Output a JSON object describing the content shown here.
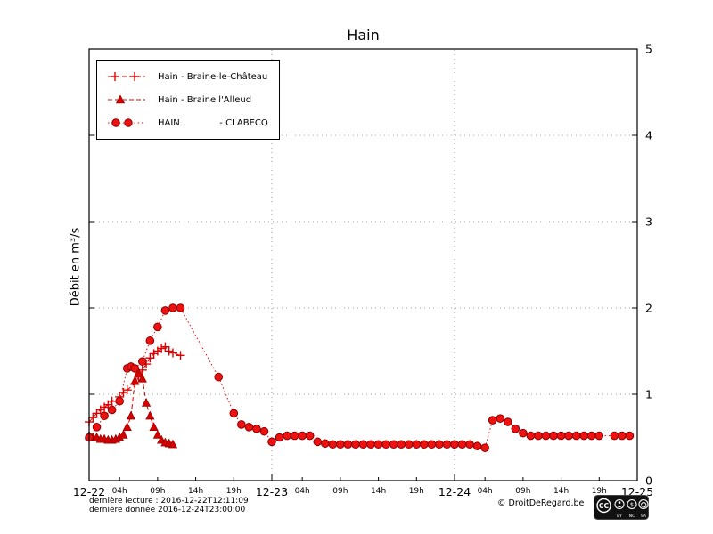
{
  "chart_data": {
    "type": "line",
    "title": "Hain",
    "ylabel": "Débit en m³/s",
    "xlim_hours": [
      0,
      72
    ],
    "ylim": [
      0,
      5
    ],
    "y_ticks": [
      0,
      1,
      2,
      3,
      4,
      5
    ],
    "x_major_ticks": [
      {
        "hour": 0,
        "label": "12-22"
      },
      {
        "hour": 24,
        "label": "12-23"
      },
      {
        "hour": 48,
        "label": "12-24"
      },
      {
        "hour": 72,
        "label": "12-25"
      }
    ],
    "x_minor_ticks": [
      {
        "hour": 4,
        "label": "04h"
      },
      {
        "hour": 9,
        "label": "09h"
      },
      {
        "hour": 14,
        "label": "14h"
      },
      {
        "hour": 19,
        "label": "19h"
      },
      {
        "hour": 28,
        "label": "04h"
      },
      {
        "hour": 33,
        "label": "09h"
      },
      {
        "hour": 38,
        "label": "14h"
      },
      {
        "hour": 43,
        "label": "19h"
      },
      {
        "hour": 52,
        "label": "04h"
      },
      {
        "hour": 57,
        "label": "09h"
      },
      {
        "hour": 62,
        "label": "14h"
      },
      {
        "hour": 67,
        "label": "19h"
      }
    ],
    "grid": {
      "vertical_hours": [
        24,
        48
      ],
      "horizontal_values": [
        1,
        2,
        3,
        4
      ]
    },
    "series": [
      {
        "name": "Hain - Braine-le-Château",
        "marker": "plus",
        "line": "dashed",
        "color": "#e00000",
        "points": [
          [
            0,
            0.68
          ],
          [
            0.5,
            0.73
          ],
          [
            1,
            0.78
          ],
          [
            1.5,
            0.82
          ],
          [
            2,
            0.85
          ],
          [
            2.5,
            0.88
          ],
          [
            3,
            0.92
          ],
          [
            4,
            0.97
          ],
          [
            4.5,
            1.02
          ],
          [
            5,
            1.05
          ],
          [
            6,
            1.12
          ],
          [
            6.5,
            1.2
          ],
          [
            7,
            1.28
          ],
          [
            7.5,
            1.35
          ],
          [
            8,
            1.42
          ],
          [
            8.5,
            1.47
          ],
          [
            9,
            1.5
          ],
          [
            9.5,
            1.53
          ],
          [
            10,
            1.55
          ],
          [
            10.5,
            1.5
          ],
          [
            11,
            1.48
          ],
          [
            12,
            1.45
          ]
        ]
      },
      {
        "name": "Hain - Braine l'Alleud",
        "marker": "triangle",
        "line": "dashed",
        "color": "#d40000",
        "points": [
          [
            0,
            0.52
          ],
          [
            0.5,
            0.5
          ],
          [
            1,
            0.5
          ],
          [
            1.5,
            0.48
          ],
          [
            2,
            0.48
          ],
          [
            2.5,
            0.47
          ],
          [
            3,
            0.47
          ],
          [
            3.5,
            0.48
          ],
          [
            4,
            0.5
          ],
          [
            4.5,
            0.53
          ],
          [
            5,
            0.62
          ],
          [
            5.5,
            0.75
          ],
          [
            6,
            1.15
          ],
          [
            6.5,
            1.25
          ],
          [
            7,
            1.18
          ],
          [
            7.5,
            0.9
          ],
          [
            8,
            0.75
          ],
          [
            8.5,
            0.62
          ],
          [
            9,
            0.53
          ],
          [
            9.5,
            0.47
          ],
          [
            10,
            0.44
          ],
          [
            10.5,
            0.43
          ],
          [
            11,
            0.42
          ]
        ]
      },
      {
        "name": "HAIN - CLABECQ",
        "marker": "circle",
        "line": "dotted",
        "color": "#ee1111",
        "points": [
          [
            0,
            0.5
          ],
          [
            1,
            0.62
          ],
          [
            2,
            0.75
          ],
          [
            3,
            0.82
          ],
          [
            4,
            0.92
          ],
          [
            5,
            1.3
          ],
          [
            5.5,
            1.32
          ],
          [
            6,
            1.3
          ],
          [
            7,
            1.38
          ],
          [
            8,
            1.62
          ],
          [
            9,
            1.78
          ],
          [
            10,
            1.97
          ],
          [
            11,
            2.0
          ],
          [
            12,
            2.0
          ],
          [
            17,
            1.2
          ],
          [
            19,
            0.78
          ],
          [
            20,
            0.65
          ],
          [
            21,
            0.62
          ],
          [
            22,
            0.6
          ],
          [
            23,
            0.57
          ],
          [
            24,
            0.45
          ],
          [
            25,
            0.5
          ],
          [
            26,
            0.52
          ],
          [
            27,
            0.52
          ],
          [
            28,
            0.52
          ],
          [
            29,
            0.52
          ],
          [
            30,
            0.45
          ],
          [
            31,
            0.43
          ],
          [
            32,
            0.42
          ],
          [
            33,
            0.42
          ],
          [
            34,
            0.42
          ],
          [
            35,
            0.42
          ],
          [
            36,
            0.42
          ],
          [
            37,
            0.42
          ],
          [
            38,
            0.42
          ],
          [
            39,
            0.42
          ],
          [
            40,
            0.42
          ],
          [
            41,
            0.42
          ],
          [
            42,
            0.42
          ],
          [
            43,
            0.42
          ],
          [
            44,
            0.42
          ],
          [
            45,
            0.42
          ],
          [
            46,
            0.42
          ],
          [
            47,
            0.42
          ],
          [
            48,
            0.42
          ],
          [
            49,
            0.42
          ],
          [
            50,
            0.42
          ],
          [
            51,
            0.4
          ],
          [
            52,
            0.38
          ],
          [
            53,
            0.7
          ],
          [
            54,
            0.72
          ],
          [
            55,
            0.68
          ],
          [
            56,
            0.6
          ],
          [
            57,
            0.55
          ],
          [
            58,
            0.52
          ],
          [
            59,
            0.52
          ],
          [
            60,
            0.52
          ],
          [
            61,
            0.52
          ],
          [
            62,
            0.52
          ],
          [
            63,
            0.52
          ],
          [
            64,
            0.52
          ],
          [
            65,
            0.52
          ],
          [
            66,
            0.52
          ],
          [
            67,
            0.52
          ],
          [
            69,
            0.52
          ],
          [
            70,
            0.52
          ],
          [
            71,
            0.52
          ]
        ]
      }
    ]
  },
  "legend": {
    "items": [
      {
        "label": "Hain - Braine-le-Château"
      },
      {
        "label": "Hain - Braine l'Alleud"
      },
      {
        "label": "HAIN              - CLABECQ"
      }
    ]
  },
  "footer": {
    "last_reading": "dernière lecture : 2016-12-22T12:11:09",
    "last_data": "dernière donnée  2016-12-24T23:00:00",
    "copyright": "© DroitDeRegard.be",
    "license": {
      "cc": "CC",
      "by": "BY",
      "nc": "NC",
      "sa": "SA"
    }
  }
}
